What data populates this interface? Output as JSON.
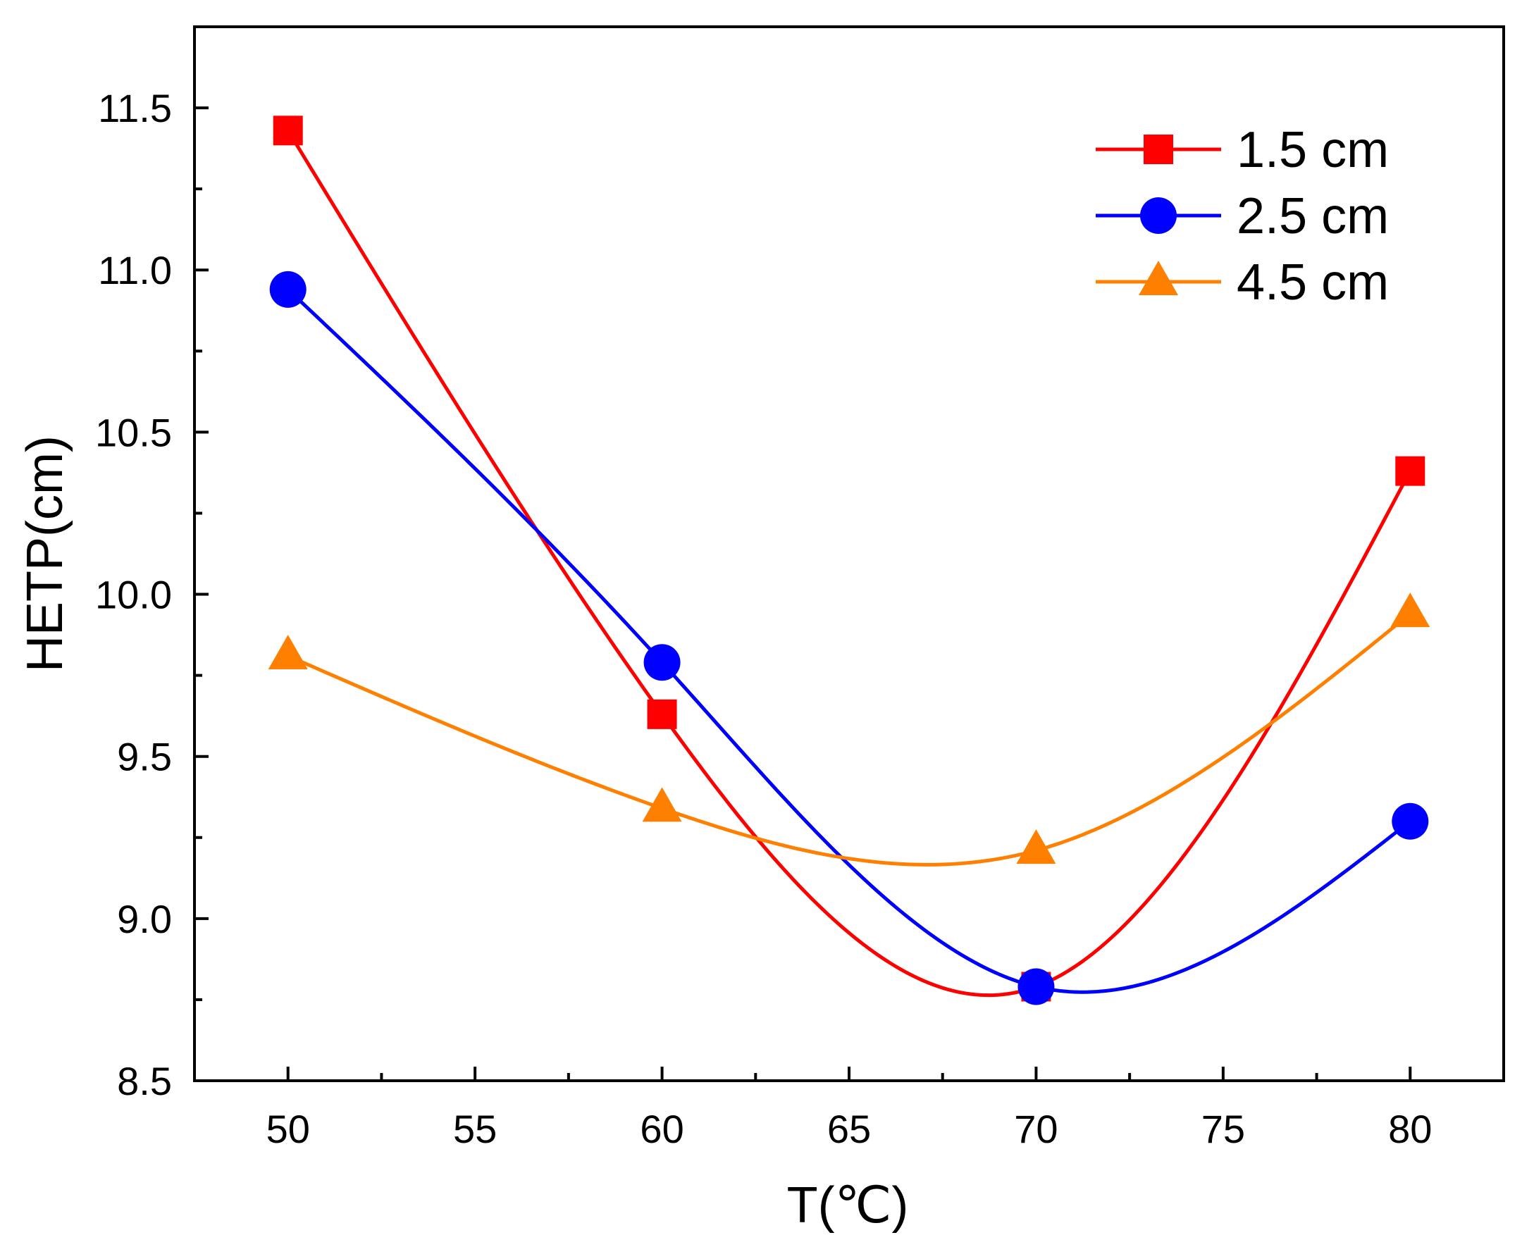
{
  "chart_data": {
    "type": "line",
    "title": "",
    "xlabel": "T(℃)",
    "ylabel": "HETP(cm)",
    "xlim": [
      47.5,
      82.5
    ],
    "ylim": [
      8.5,
      11.75
    ],
    "x": [
      50,
      60,
      70,
      80
    ],
    "x_ticks": [
      "50",
      "55",
      "60",
      "65",
      "70",
      "75",
      "80"
    ],
    "y_ticks": [
      "8.5",
      "9.0",
      "9.5",
      "10.0",
      "10.5",
      "11.0",
      "11.5"
    ],
    "grid": false,
    "smooth": true,
    "legend_position": "top-right",
    "series": [
      {
        "name": "1.5 cm",
        "color": "#ff0000",
        "marker": "square",
        "values": [
          11.43,
          9.63,
          8.79,
          10.38
        ]
      },
      {
        "name": "2.5 cm",
        "color": "#0000ff",
        "marker": "circle",
        "values": [
          10.94,
          9.79,
          8.79,
          9.3
        ]
      },
      {
        "name": "4.5 cm",
        "color": "#ff8000",
        "marker": "triangle",
        "values": [
          9.81,
          9.34,
          9.21,
          9.94
        ]
      }
    ]
  }
}
